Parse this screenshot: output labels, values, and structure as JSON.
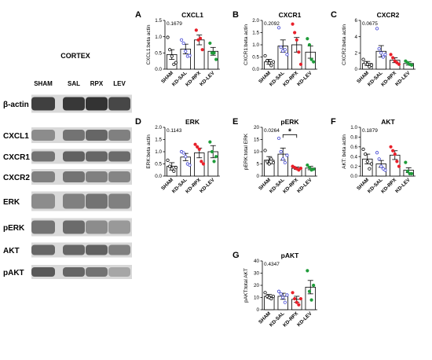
{
  "blot": {
    "title": "CORTEX",
    "lanes": [
      "SHAM",
      "SAL",
      "RPX",
      "LEV"
    ],
    "rows": [
      "β-actin",
      "CXCL1",
      "CXCR1",
      "CXCR2",
      "ERK",
      "pERK",
      "AKT",
      "pAKT"
    ]
  },
  "colors": {
    "SHAM": "#000000",
    "KD-SAL": "#3b3fd1",
    "KD-RPX": "#e8202a",
    "KD-LEV": "#1f9c3a"
  },
  "chart_data": [
    {
      "type": "bar",
      "letter": "A",
      "title": "CXCL1",
      "ylabel": "CXCL1:beta actin",
      "pvalue": "0.1679",
      "categories": [
        "SHAM",
        "KD-SAL",
        "KD-RPX",
        "KD-LEV"
      ],
      "ylim": [
        0,
        1.5
      ],
      "yticks": [
        "0.0",
        "0.5",
        "1.0",
        "1.5"
      ],
      "ytick_values": [
        0,
        0.5,
        1.0,
        1.5
      ],
      "means": [
        0.45,
        0.62,
        0.9,
        0.55
      ],
      "sems": [
        0.15,
        0.15,
        0.15,
        0.12
      ],
      "points": [
        [
          0.98,
          0.6,
          0.4,
          0.15,
          0.2
        ],
        [
          0.9,
          0.8,
          0.55,
          0.4,
          0.42
        ],
        [
          1.2,
          0.9,
          0.95,
          0.6
        ],
        [
          0.8,
          0.5,
          0.5,
          0.3
        ]
      ],
      "significance": null
    },
    {
      "type": "bar",
      "letter": "B",
      "title": "CXCR1",
      "ylabel": "CXCR1:beta actin",
      "pvalue": "0.2092",
      "categories": [
        "SHAM",
        "KD-SAL",
        "KD-RPX",
        "KD-LEV"
      ],
      "ylim": [
        0,
        2.0
      ],
      "yticks": [
        "0.0",
        "0.5",
        "1.0",
        "1.5",
        "2.0"
      ],
      "ytick_values": [
        0,
        0.5,
        1.0,
        1.5,
        2.0
      ],
      "means": [
        0.3,
        0.95,
        1.0,
        0.7
      ],
      "sems": [
        0.1,
        0.25,
        0.3,
        0.25
      ],
      "points": [
        [
          0.55,
          0.35,
          0.25,
          0.15,
          0.3
        ],
        [
          1.7,
          0.9,
          0.75,
          0.8,
          0.6
        ],
        [
          1.85,
          1.5,
          1.2,
          0.7,
          0.2
        ],
        [
          1.25,
          1.0,
          0.4,
          0.3
        ]
      ],
      "significance": null
    },
    {
      "type": "bar",
      "letter": "C",
      "title": "CXCR2",
      "ylabel": "CXCR2:beta actin",
      "pvalue": "0.0675",
      "categories": [
        "SHAM",
        "KD-SAL",
        "KD-RPX",
        "KD-LEV"
      ],
      "ylim": [
        0,
        6
      ],
      "yticks": [
        "0",
        "2",
        "4",
        "6"
      ],
      "ytick_values": [
        0,
        2,
        4,
        6
      ],
      "means": [
        0.7,
        2.2,
        1.1,
        0.7
      ],
      "sems": [
        0.25,
        0.7,
        0.3,
        0.2
      ],
      "points": [
        [
          1.2,
          0.8,
          0.6,
          0.3,
          0.5
        ],
        [
          5.0,
          2.5,
          2.0,
          1.5,
          1.8
        ],
        [
          1.8,
          1.4,
          1.0,
          0.8,
          0.6
        ],
        [
          1.0,
          0.8,
          0.6,
          0.5
        ]
      ],
      "significance": null
    },
    {
      "type": "bar",
      "letter": "D",
      "title": "ERK",
      "ylabel": "ERK:beta actin",
      "pvalue": "0.1143",
      "categories": [
        "SHAM",
        "KD-SAL",
        "KD-RPX",
        "KD-LEV"
      ],
      "ylim": [
        0,
        2.0
      ],
      "yticks": [
        "0.0",
        "0.5",
        "1.0",
        "1.5",
        "2.0"
      ],
      "ytick_values": [
        0,
        0.5,
        1.0,
        1.5,
        2.0
      ],
      "means": [
        0.4,
        0.78,
        0.95,
        1.0
      ],
      "sems": [
        0.15,
        0.15,
        0.2,
        0.25
      ],
      "points": [
        [
          0.65,
          0.4,
          0.3,
          0.2,
          0.35
        ],
        [
          1.0,
          0.95,
          0.8,
          0.5,
          0.45
        ],
        [
          1.3,
          1.2,
          1.1,
          0.6,
          0.5
        ],
        [
          1.4,
          1.0,
          0.6,
          0.8
        ]
      ],
      "significance": null
    },
    {
      "type": "bar",
      "letter": "E",
      "title": "pERK",
      "ylabel": "pERK:total ERK",
      "pvalue": "0.0264",
      "categories": [
        "SHAM",
        "KD-SAL",
        "KD-RPX",
        "KD-LEV"
      ],
      "ylim": [
        0,
        20
      ],
      "yticks": [
        "0",
        "5",
        "10",
        "15",
        "20"
      ],
      "ytick_values": [
        0,
        5,
        10,
        15,
        20
      ],
      "means": [
        6.5,
        9.0,
        3.2,
        3.3
      ],
      "sems": [
        1.5,
        2.5,
        0.5,
        0.7
      ],
      "points": [
        [
          10.5,
          6.0,
          5.0,
          7.0,
          5.5
        ],
        [
          15.5,
          10.0,
          7.0,
          5.5,
          8.5
        ],
        [
          4.0,
          3.5,
          3.0,
          2.5,
          3.2
        ],
        [
          4.5,
          3.5,
          2.5,
          2.8
        ]
      ],
      "significance": {
        "from": 1,
        "to": 2,
        "label": "*",
        "y": 17
      }
    },
    {
      "type": "bar",
      "letter": "F",
      "title": "AKT",
      "ylabel": "AKT: beta actin",
      "pvalue": "0.1879",
      "categories": [
        "SHAM",
        "KD-SAL",
        "KD-RPX",
        "KD-LEV"
      ],
      "ylim": [
        0,
        1.0
      ],
      "yticks": [
        "0.0",
        "0.2",
        "0.4",
        "0.6",
        "0.8",
        "1.0"
      ],
      "ytick_values": [
        0,
        0.2,
        0.4,
        0.6,
        0.8,
        1.0
      ],
      "means": [
        0.35,
        0.25,
        0.43,
        0.12
      ],
      "sems": [
        0.1,
        0.07,
        0.09,
        0.05
      ],
      "points": [
        [
          0.55,
          0.45,
          0.3,
          0.15,
          0.25
        ],
        [
          0.48,
          0.35,
          0.2,
          0.15,
          0.12
        ],
        [
          0.6,
          0.52,
          0.45,
          0.3,
          0.2
        ],
        [
          0.28,
          0.1,
          0.05,
          0.05
        ]
      ],
      "significance": null
    },
    {
      "type": "bar",
      "letter": "G",
      "title": "pAKT",
      "ylabel": "pAKT:total AKT",
      "pvalue": "0.4347",
      "categories": [
        "SHAM",
        "KD-SAL",
        "KD-RPX",
        "KD-LEV"
      ],
      "ylim": [
        0,
        40
      ],
      "yticks": [
        "0",
        "10",
        "20",
        "30",
        "40"
      ],
      "ytick_values": [
        0,
        10,
        20,
        30,
        40
      ],
      "means": [
        11,
        11,
        8.5,
        18.5
      ],
      "sems": [
        1.5,
        2.5,
        2.5,
        5.5
      ],
      "points": [
        [
          14,
          11,
          10,
          9,
          11
        ],
        [
          15,
          13,
          10,
          6,
          12
        ],
        [
          14,
          9,
          6,
          4,
          9
        ],
        [
          32,
          15,
          8,
          20
        ]
      ],
      "significance": null
    }
  ]
}
